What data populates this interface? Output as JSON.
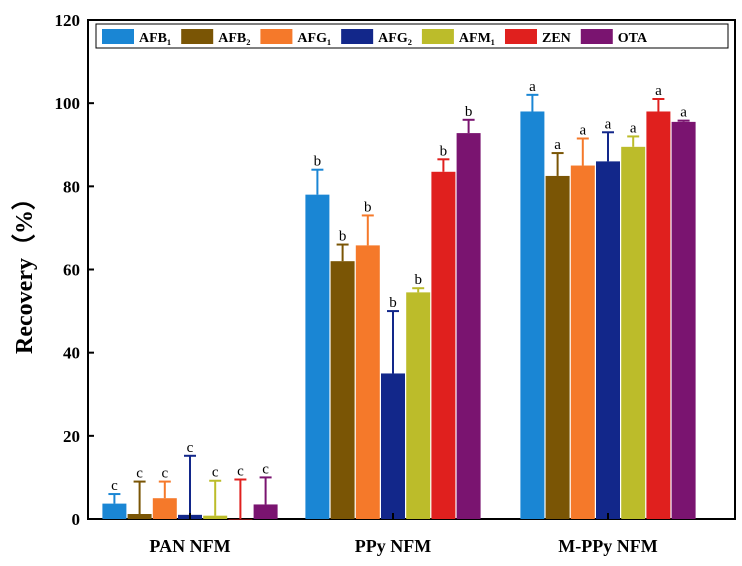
{
  "chart_data": {
    "type": "bar",
    "title": "",
    "xlabel": "",
    "ylabel": "Recovery（%）",
    "ylim": [
      0,
      120
    ],
    "yticks": [
      0,
      20,
      40,
      60,
      80,
      100,
      120
    ],
    "grid": false,
    "legend_placement": "top",
    "categories": [
      "PAN NFM",
      "PPy NFM",
      "M-PPy NFM"
    ],
    "series": [
      {
        "name": "AFB₁",
        "color": "#1a86d4",
        "values": [
          3.7,
          78,
          98
        ],
        "error_upper": [
          6,
          84,
          102
        ],
        "labels": [
          "c",
          "b",
          "a"
        ]
      },
      {
        "name": "AFB₂",
        "color": "#7a5505",
        "values": [
          1.2,
          62,
          82.5
        ],
        "error_upper": [
          9,
          66,
          88
        ],
        "labels": [
          "c",
          "b",
          "a"
        ]
      },
      {
        "name": "AFG₁",
        "color": "#f5792a",
        "values": [
          5,
          65.8,
          85
        ],
        "error_upper": [
          9,
          73,
          91.5
        ],
        "labels": [
          "c",
          "b",
          "a"
        ]
      },
      {
        "name": "AFG₂",
        "color": "#12278a",
        "values": [
          1,
          35,
          86
        ],
        "error_upper": [
          15.2,
          50,
          93
        ],
        "labels": [
          "c",
          "b",
          "a"
        ]
      },
      {
        "name": "AFM₁",
        "color": "#bcbc2a",
        "values": [
          0.8,
          54.5,
          89.5
        ],
        "error_upper": [
          9.2,
          55.5,
          92
        ],
        "labels": [
          "c",
          "b",
          "a"
        ]
      },
      {
        "name": "ZEN",
        "color": "#e0201e",
        "values": [
          0,
          83.5,
          98
        ],
        "error_upper": [
          9.5,
          86.5,
          101
        ],
        "labels": [
          "c",
          "b",
          "a"
        ]
      },
      {
        "name": "OTA",
        "color": "#7a1470",
        "values": [
          3.5,
          92.8,
          95.5
        ],
        "error_upper": [
          10,
          96,
          95.8
        ],
        "labels": [
          "c",
          "b",
          "a"
        ]
      }
    ]
  }
}
